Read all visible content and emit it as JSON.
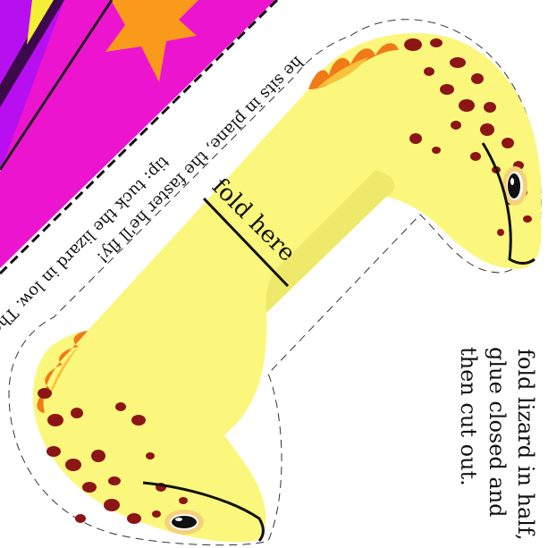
{
  "tip": {
    "line1": "tip: tuck the lizard in low. The lower",
    "line2": "he sits in plane, the faster he'll fly!"
  },
  "fold_label": "fold here",
  "instructions": {
    "line1": "fold lizard in half,",
    "line2": "glue closed and",
    "line3": "then cut out."
  },
  "colors": {
    "body": "#fbf77c",
    "body_shade": "#eee96a",
    "spots": "#8c1515",
    "crest_outer": "#f07a18",
    "crest_inner": "#f8c23a",
    "plane_purple": "#b80ff0",
    "plane_magenta": "#ec14cf",
    "star": "#f99a1b",
    "star_yellow": "#f3ef34"
  }
}
